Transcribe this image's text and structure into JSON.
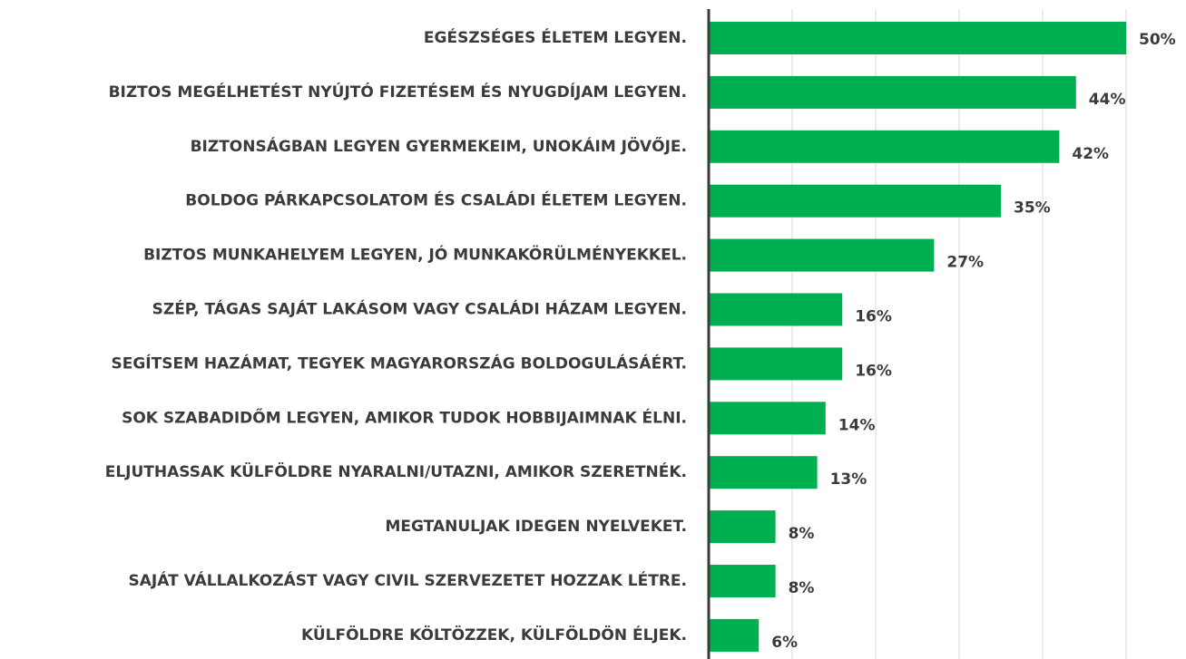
{
  "chart_data": {
    "type": "bar",
    "orientation": "horizontal",
    "categories": [
      "EGÉSZSÉGES ÉLETEM LEGYEN.",
      "BIZTOS MEGÉLHETÉST NYÚJTÓ FIZETÉSEM ÉS NYUGDÍJAM LEGYEN.",
      "BIZTONSÁGBAN LEGYEN GYERMEKEIM, UNOKÁIM JÖVŐJE.",
      "BOLDOG PÁRKAPCSOLATOM ÉS CSALÁDI ÉLETEM LEGYEN.",
      "BIZTOS MUNKAHELYEM LEGYEN, JÓ MUNKAKÖRÜLMÉNYEKKEL.",
      "SZÉP, TÁGAS SAJÁT LAKÁSOM VAGY CSALÁDI HÁZAM LEGYEN.",
      "SEGÍTSEM HAZÁMAT, TEGYEK MAGYARORSZÁG BOLDOGULÁSÁÉRT.",
      "SOK SZABADIDŐM LEGYEN, AMIKOR TUDOK HOBBIJAIMNAK ÉLNI.",
      "ELJUTHASSAK KÜLFÖLDRE NYARALNI/UTAZNI, AMIKOR SZERETNÉK.",
      "MEGTANULJAK IDEGEN NYELVEKET.",
      "SAJÁT VÁLLALKOZÁST VAGY CIVIL SZERVEZETET HOZZAK LÉTRE.",
      "KÜLFÖLDRE KÖLTÖZZEK, KÜLFÖLDÖN ÉLJEK."
    ],
    "values": [
      50,
      44,
      42,
      35,
      27,
      16,
      16,
      14,
      13,
      8,
      8,
      6
    ],
    "value_labels": [
      "50%",
      "44%",
      "42%",
      "35%",
      "27%",
      "16%",
      "16%",
      "14%",
      "13%",
      "8%",
      "8%",
      "6%"
    ],
    "color": "#00b050",
    "xlim": [
      0,
      50
    ],
    "xticks": [
      0,
      10,
      20,
      30,
      40,
      50
    ],
    "grid": true
  }
}
